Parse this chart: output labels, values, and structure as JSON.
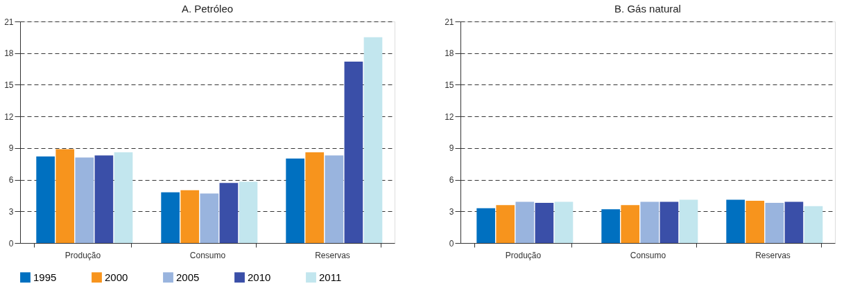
{
  "chart_data": [
    {
      "type": "bar",
      "title": "A. Petróleo",
      "categories": [
        "Produção",
        "Consumo",
        "Reservas"
      ],
      "ylim": [
        0,
        21
      ],
      "yticks": [
        0,
        3,
        6,
        9,
        12,
        15,
        18,
        21
      ],
      "grid": "y",
      "legend": "bottom",
      "series": [
        {
          "name": "1995",
          "color": "#0070c0",
          "values": [
            8.2,
            4.8,
            8.0
          ]
        },
        {
          "name": "2000",
          "color": "#f7941d",
          "values": [
            8.9,
            5.0,
            8.6
          ]
        },
        {
          "name": "2005",
          "color": "#99b4de",
          "values": [
            8.1,
            4.7,
            8.3
          ]
        },
        {
          "name": "2010",
          "color": "#3a4fa8",
          "values": [
            8.3,
            5.7,
            17.2
          ]
        },
        {
          "name": "2011",
          "color": "#c2e6ee",
          "values": [
            8.6,
            5.8,
            19.5
          ]
        }
      ]
    },
    {
      "type": "bar",
      "title": "B. Gás natural",
      "categories": [
        "Produção",
        "Consumo",
        "Reservas"
      ],
      "ylim": [
        0,
        21
      ],
      "yticks": [
        0,
        3,
        6,
        9,
        12,
        15,
        18,
        21
      ],
      "grid": "y",
      "legend": "bottom",
      "series": [
        {
          "name": "1995",
          "color": "#0070c0",
          "values": [
            3.3,
            3.2,
            4.1
          ]
        },
        {
          "name": "2000",
          "color": "#f7941d",
          "values": [
            3.6,
            3.6,
            4.0
          ]
        },
        {
          "name": "2005",
          "color": "#99b4de",
          "values": [
            3.9,
            3.9,
            3.8
          ]
        },
        {
          "name": "2010",
          "color": "#3a4fa8",
          "values": [
            3.8,
            3.9,
            3.9
          ]
        },
        {
          "name": "2011",
          "color": "#c2e6ee",
          "values": [
            3.9,
            4.1,
            3.5
          ]
        }
      ]
    }
  ]
}
